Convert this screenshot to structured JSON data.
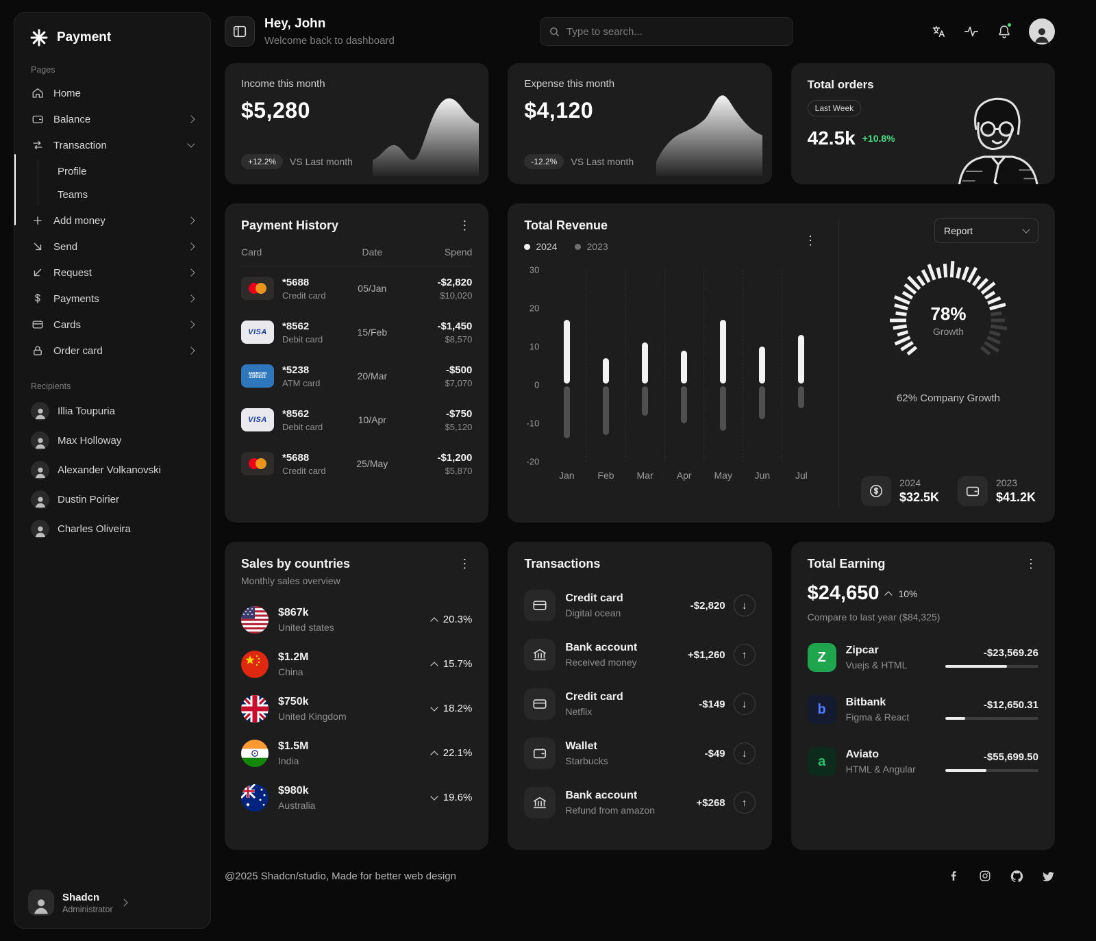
{
  "sidebar": {
    "logo_text": "Payment",
    "pages_label": "Pages",
    "items": [
      {
        "label": "Home",
        "icon": "home"
      },
      {
        "label": "Balance",
        "icon": "wallet"
      },
      {
        "label": "Transaction",
        "icon": "transfer"
      },
      {
        "label": "Add money",
        "icon": "plus"
      },
      {
        "label": "Send",
        "icon": "arrow-down-right"
      },
      {
        "label": "Request",
        "icon": "arrow-down-left"
      },
      {
        "label": "Payments",
        "icon": "dollar"
      },
      {
        "label": "Cards",
        "icon": "credit-card"
      },
      {
        "label": "Order card",
        "icon": "lock"
      }
    ],
    "transaction_children": [
      "Profile",
      "Teams"
    ],
    "recipients_label": "Recipients",
    "recipients": [
      "Illia Toupuria",
      "Max Holloway",
      "Alexander Volkanovski",
      "Dustin Poirier",
      "Charles Oliveira"
    ],
    "user": {
      "name": "Shadcn",
      "role": "Administrator"
    }
  },
  "header": {
    "greeting": "Hey, John",
    "subtitle": "Welcome back to dashboard",
    "search_placeholder": "Type to search...",
    "icons": [
      "translate",
      "activity",
      "notifications",
      "profile"
    ]
  },
  "stats": {
    "income": {
      "title": "Income this month",
      "value": "$5,280",
      "badge": "+12.2%",
      "compare": "VS Last month"
    },
    "expense": {
      "title": "Expense this month",
      "value": "$4,120",
      "badge": "-12.2%",
      "compare": "VS Last month"
    },
    "orders": {
      "title": "Total orders",
      "period": "Last Week",
      "value": "42.5k",
      "change": "+10.8%",
      "change_color": "#4ade80"
    }
  },
  "payment_history": {
    "title": "Payment History",
    "columns": [
      "Card",
      "Date",
      "Spend"
    ],
    "rows": [
      {
        "card": "*5688",
        "type": "Credit card",
        "brand": "mastercard",
        "date": "05/Jan",
        "spend": "-$2,820",
        "total": "$10,020"
      },
      {
        "card": "*8562",
        "type": "Debit card",
        "brand": "visa",
        "date": "15/Feb",
        "spend": "-$1,450",
        "total": "$8,570"
      },
      {
        "card": "*5238",
        "type": "ATM card",
        "brand": "amex",
        "date": "20/Mar",
        "spend": "-$500",
        "total": "$7,070"
      },
      {
        "card": "*8562",
        "type": "Debit card",
        "brand": "visa",
        "date": "10/Apr",
        "spend": "-$750",
        "total": "$5,120"
      },
      {
        "card": "*5688",
        "type": "Credit card",
        "brand": "mastercard",
        "date": "25/May",
        "spend": "-$1,200",
        "total": "$5,870"
      }
    ]
  },
  "total_revenue": {
    "title": "Total Revenue",
    "legend": [
      "2024",
      "2023"
    ],
    "report_label": "Report",
    "gauge": {
      "value": "78%",
      "label": "Growth",
      "percent": 78
    },
    "company_growth": "62% Company Growth",
    "summary": [
      {
        "year": "2024",
        "value": "$32.5K",
        "icon": "dollar-circle"
      },
      {
        "year": "2023",
        "value": "$41.2K",
        "icon": "wallet"
      }
    ],
    "chart": {
      "type": "bar",
      "categories": [
        "Jan",
        "Feb",
        "Mar",
        "Apr",
        "May",
        "Jun",
        "Jul"
      ],
      "series": [
        {
          "name": "2024",
          "values": [
            17,
            7,
            11,
            9,
            17,
            10,
            13
          ]
        },
        {
          "name": "2023",
          "values": [
            -14,
            -13,
            -8,
            -10,
            -12,
            -9,
            -6
          ]
        }
      ],
      "yticks": [
        30,
        20,
        10,
        0,
        -10,
        -20
      ],
      "ylim": [
        -20,
        30
      ],
      "colors": {
        "s2024": "#f2f2f2",
        "s2023": "#4f4f4f"
      }
    }
  },
  "sales": {
    "title": "Sales by countries",
    "subtitle": "Monthly sales overview",
    "rows": [
      {
        "value": "$867k",
        "country": "United states",
        "percent": "20.3%",
        "trend": "up",
        "flag": "us"
      },
      {
        "value": "$1.2M",
        "country": "China",
        "percent": "15.7%",
        "trend": "up",
        "flag": "cn"
      },
      {
        "value": "$750k",
        "country": "United Kingdom",
        "percent": "18.2%",
        "trend": "down",
        "flag": "gb"
      },
      {
        "value": "$1.5M",
        "country": "India",
        "percent": "22.1%",
        "trend": "up",
        "flag": "in"
      },
      {
        "value": "$980k",
        "country": "Australia",
        "percent": "19.6%",
        "trend": "down",
        "flag": "au"
      }
    ]
  },
  "transactions": {
    "title": "Transactions",
    "rows": [
      {
        "title": "Credit card",
        "subtitle": "Digital ocean",
        "amount": "-$2,820",
        "direction": "down",
        "icon": "credit-card"
      },
      {
        "title": "Bank account",
        "subtitle": "Received money",
        "amount": "+$1,260",
        "direction": "up",
        "icon": "bank"
      },
      {
        "title": "Credit card",
        "subtitle": "Netflix",
        "amount": "-$149",
        "direction": "down",
        "icon": "credit-card"
      },
      {
        "title": "Wallet",
        "subtitle": "Starbucks",
        "amount": "-$49",
        "direction": "down",
        "icon": "wallet"
      },
      {
        "title": "Bank account",
        "subtitle": "Refund from amazon",
        "amount": "+$268",
        "direction": "up",
        "icon": "bank"
      }
    ]
  },
  "total_earning": {
    "title": "Total Earning",
    "value": "$24,650",
    "change": "10%",
    "compare": "Compare to last year ($84,325)",
    "rows": [
      {
        "name": "Zipcar",
        "stack": "Vuejs & HTML",
        "amount": "-$23,569.26",
        "progress": 66,
        "letter": "Z",
        "tile_bg": "#1ea54d",
        "letter_color": "#ffffff"
      },
      {
        "name": "Bitbank",
        "stack": "Figma & React",
        "amount": "-$12,650.31",
        "progress": 21,
        "letter": "b",
        "tile_bg": "#141b31",
        "letter_color": "#4f7dff"
      },
      {
        "name": "Aviato",
        "stack": "HTML & Angular",
        "amount": "-$55,699.50",
        "progress": 44,
        "letter": "a",
        "tile_bg": "#0d2b1d",
        "letter_color": "#2bc46f"
      }
    ]
  },
  "footer": {
    "copyright": "@2025 Shadcn/studio, Made for better web design",
    "social": [
      "facebook",
      "instagram",
      "github",
      "twitter"
    ]
  }
}
